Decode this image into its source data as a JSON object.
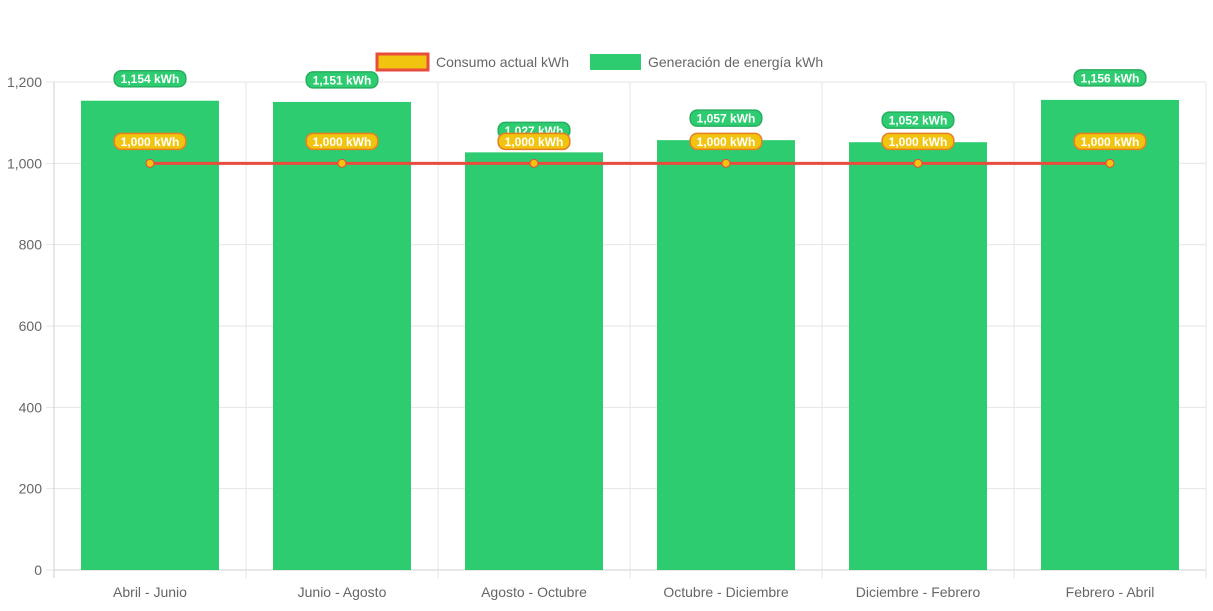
{
  "chart_data": {
    "type": "bar",
    "categories": [
      "Abril - Junio",
      "Junio - Agosto",
      "Agosto - Octubre",
      "Octubre - Diciembre",
      "Diciembre - Febrero",
      "Febrero - Abril"
    ],
    "series": [
      {
        "name": "Consumo actual kWh",
        "type": "line",
        "values": [
          1000,
          1000,
          1000,
          1000,
          1000,
          1000
        ],
        "labels": [
          "1,000 kWh",
          "1,000 kWh",
          "1,000 kWh",
          "1,000 kWh",
          "1,000 kWh",
          "1,000 kWh"
        ],
        "color": "#e74c3c",
        "fill": "#f1c40f"
      },
      {
        "name": "Generación de energía kWh",
        "type": "bar",
        "values": [
          1154,
          1151,
          1027,
          1057,
          1052,
          1156
        ],
        "labels": [
          "1,154 kWh",
          "1,151 kWh",
          "1,027 kWh",
          "1,057 kWh",
          "1,052 kWh",
          "1,156 kWh"
        ],
        "color": "#2ecc71"
      }
    ],
    "y_ticks": [
      "0",
      "200",
      "400",
      "600",
      "800",
      "1,000",
      "1,200"
    ],
    "ylim": [
      0,
      1200
    ],
    "grid": true,
    "legend": "top"
  }
}
